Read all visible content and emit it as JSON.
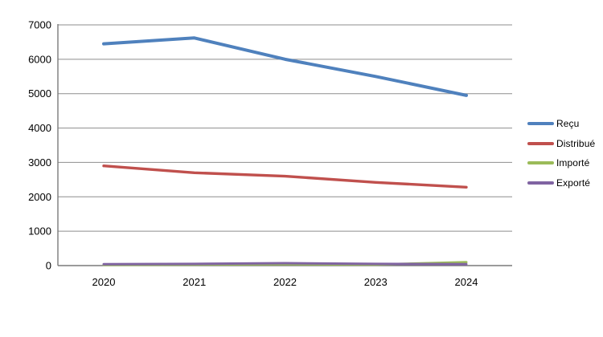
{
  "chart_data": {
    "type": "line",
    "categories": [
      "2020",
      "2021",
      "2022",
      "2023",
      "2024"
    ],
    "series": [
      {
        "name": "Reçu",
        "color": "#4F81BD",
        "values": [
          6450,
          6620,
          6000,
          5500,
          4950
        ]
      },
      {
        "name": "Distribué",
        "color": "#C0504D",
        "values": [
          2900,
          2700,
          2600,
          2420,
          2280
        ]
      },
      {
        "name": "Importé",
        "color": "#9BBB59",
        "values": [
          20,
          30,
          40,
          30,
          100
        ]
      },
      {
        "name": "Exporté",
        "color": "#8064A2",
        "values": [
          40,
          50,
          70,
          50,
          40
        ]
      }
    ],
    "title": "",
    "xlabel": "",
    "ylabel": "",
    "ylim": [
      0,
      7000
    ],
    "ytick_step": 1000,
    "ytick_labels": [
      "0",
      "1000",
      "2000",
      "3000",
      "4000",
      "5000",
      "6000",
      "7000"
    ],
    "grid": "horizontal",
    "legend_position": "right",
    "colors": {
      "background": "#FFFFFF",
      "gridline": "#8E8E8E",
      "axis": "#7A7A7A",
      "text": "#000000"
    }
  }
}
